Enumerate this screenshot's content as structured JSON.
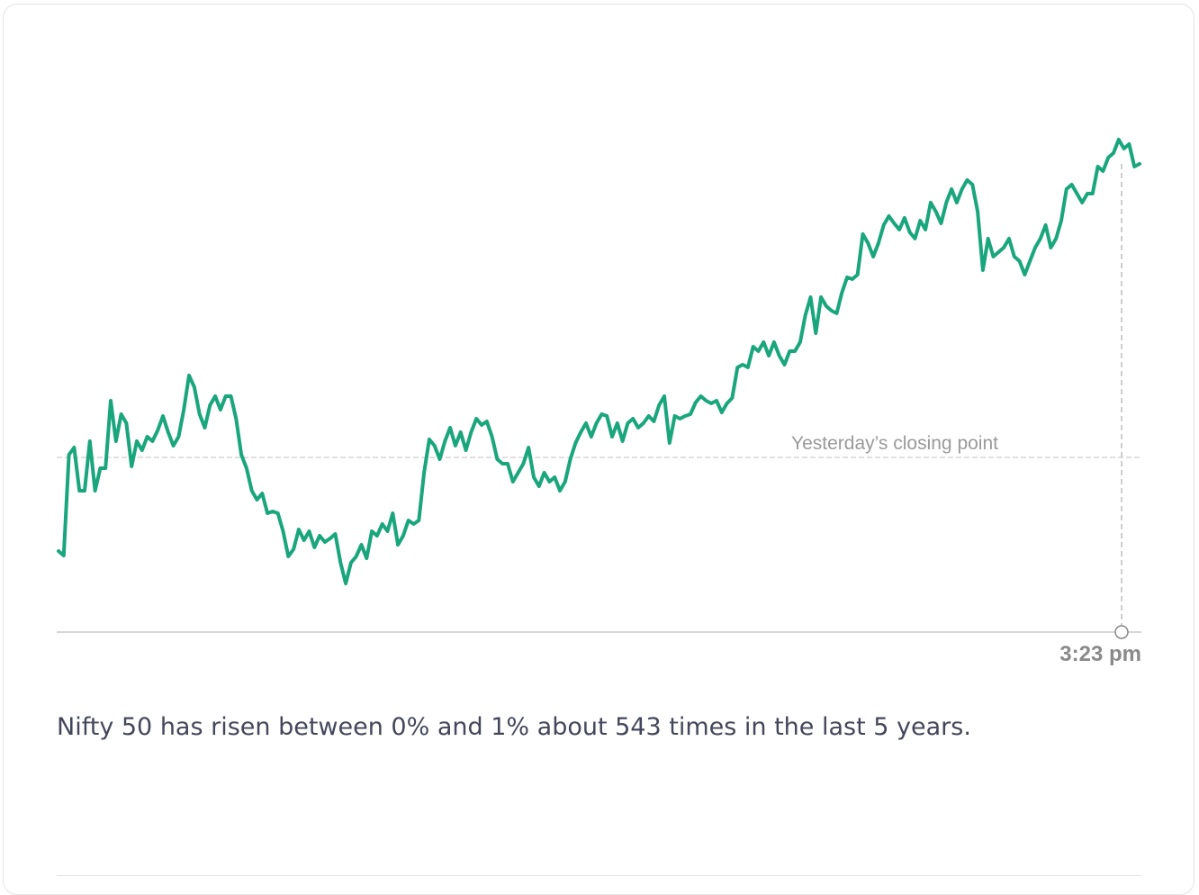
{
  "chart_data": {
    "type": "line",
    "color": "#1aa67d",
    "ylim": [
      0,
      560
    ],
    "reference": {
      "label": "Yesterday’s closing point",
      "value": 194
    },
    "x_label": "3:23 pm",
    "values": [
      90,
      85,
      197,
      205,
      157,
      157,
      212,
      157,
      182,
      182,
      257,
      212,
      242,
      232,
      184,
      212,
      202,
      217,
      212,
      224,
      240,
      222,
      207,
      217,
      247,
      285,
      272,
      242,
      227,
      252,
      262,
      247,
      262,
      262,
      237,
      197,
      182,
      157,
      147,
      154,
      132,
      134,
      132,
      112,
      84,
      92,
      114,
      102,
      112,
      94,
      107,
      100,
      104,
      109,
      77,
      54,
      77,
      84,
      97,
      82,
      112,
      107,
      120,
      112,
      132,
      97,
      107,
      124,
      120,
      124,
      177,
      214,
      207,
      192,
      212,
      227,
      207,
      222,
      202,
      222,
      237,
      230,
      234,
      217,
      192,
      187,
      187,
      167,
      177,
      187,
      205,
      172,
      162,
      177,
      167,
      172,
      157,
      167,
      192,
      210,
      222,
      232,
      217,
      232,
      242,
      240,
      217,
      232,
      212,
      232,
      237,
      227,
      232,
      240,
      234,
      252,
      262,
      210,
      240,
      237,
      240,
      242,
      255,
      262,
      257,
      254,
      257,
      244,
      254,
      260,
      294,
      297,
      294,
      317,
      312,
      322,
      307,
      322,
      307,
      297,
      312,
      312,
      322,
      352,
      372,
      332,
      372,
      362,
      357,
      354,
      377,
      394,
      392,
      397,
      442,
      432,
      417,
      432,
      452,
      462,
      454,
      447,
      460,
      444,
      437,
      457,
      447,
      477,
      467,
      454,
      477,
      492,
      477,
      492,
      502,
      497,
      467,
      402,
      437,
      417,
      422,
      427,
      437,
      417,
      412,
      397,
      412,
      427,
      437,
      452,
      427,
      437,
      457,
      492,
      497,
      487,
      477,
      487,
      487,
      517,
      512,
      527,
      532,
      547,
      537,
      542,
      517,
      520
    ]
  },
  "caption": "Nifty 50 has risen between 0% and 1% about 543 times in the last 5 years."
}
